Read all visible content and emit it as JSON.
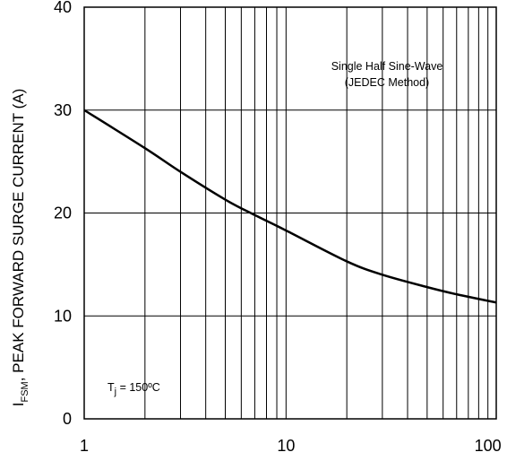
{
  "chart_data": {
    "type": "line",
    "title": "",
    "xlabel": "",
    "ylabel_main": "I",
    "ylabel_subscript": "FSM",
    "ylabel_rest": ", PEAK FORWARD SURGE CURRENT (A)",
    "x_scale": "log",
    "xlim": [
      1,
      110
    ],
    "ylim": [
      0,
      40
    ],
    "x_ticks": [
      {
        "value": 1,
        "label": "1"
      },
      {
        "value": 10,
        "label": "10"
      },
      {
        "value": 100,
        "label": "100"
      }
    ],
    "y_ticks": [
      {
        "value": 0,
        "label": "0"
      },
      {
        "value": 10,
        "label": "10"
      },
      {
        "value": 20,
        "label": "20"
      },
      {
        "value": 30,
        "label": "30"
      },
      {
        "value": 40,
        "label": "40"
      }
    ],
    "grid": true,
    "annotations": {
      "waveform_line1": "Single Half Sine-Wave",
      "waveform_line2": "(JEDEC Method)",
      "temp_prefix": "T",
      "temp_subscript": "j",
      "temp_suffix": " = 150ºC"
    },
    "series": [
      {
        "x": [
          1,
          2,
          3,
          5,
          7,
          10,
          20,
          30,
          50,
          70,
          110
        ],
        "y": [
          30,
          26.3,
          24.0,
          21.3,
          19.8,
          18.3,
          15.3,
          14.0,
          12.8,
          12.1,
          11.3
        ]
      }
    ]
  }
}
